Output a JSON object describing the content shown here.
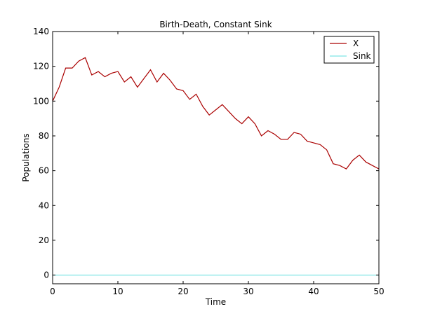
{
  "chart_data": {
    "type": "line",
    "title": "Birth-Death, Constant Sink",
    "xlabel": "Time",
    "ylabel": "Populations",
    "xlim": [
      0,
      50
    ],
    "ylim": [
      -5,
      140
    ],
    "xticks": [
      0,
      10,
      20,
      30,
      40,
      50
    ],
    "yticks": [
      0,
      20,
      40,
      60,
      80,
      100,
      120,
      140
    ],
    "grid": false,
    "legend_position": "top-right",
    "x": [
      0,
      1,
      2,
      3,
      4,
      5,
      6,
      7,
      8,
      9,
      10,
      11,
      12,
      13,
      14,
      15,
      16,
      17,
      18,
      19,
      20,
      21,
      22,
      23,
      24,
      25,
      26,
      27,
      28,
      29,
      30,
      31,
      32,
      33,
      34,
      35,
      36,
      37,
      38,
      39,
      40,
      41,
      42,
      43,
      44,
      45,
      46,
      47,
      48,
      49,
      50
    ],
    "series": [
      {
        "name": "X",
        "color": "#aa0000",
        "values": [
          100,
          108,
          119,
          119,
          123,
          125,
          115,
          117,
          114,
          116,
          117,
          111,
          114,
          108,
          113,
          118,
          111,
          116,
          112,
          107,
          106,
          101,
          104,
          97,
          92,
          95,
          98,
          94,
          90,
          87,
          91,
          87,
          80,
          83,
          81,
          78,
          78,
          82,
          81,
          77,
          76,
          75,
          72,
          64,
          63,
          61,
          66,
          69,
          65,
          63,
          61
        ]
      },
      {
        "name": "Sink",
        "color": "#7fe5e5",
        "values": [
          0,
          0,
          0,
          0,
          0,
          0,
          0,
          0,
          0,
          0,
          0,
          0,
          0,
          0,
          0,
          0,
          0,
          0,
          0,
          0,
          0,
          0,
          0,
          0,
          0,
          0,
          0,
          0,
          0,
          0,
          0,
          0,
          0,
          0,
          0,
          0,
          0,
          0,
          0,
          0,
          0,
          0,
          0,
          0,
          0,
          0,
          0,
          0,
          0,
          0,
          0
        ]
      }
    ]
  }
}
